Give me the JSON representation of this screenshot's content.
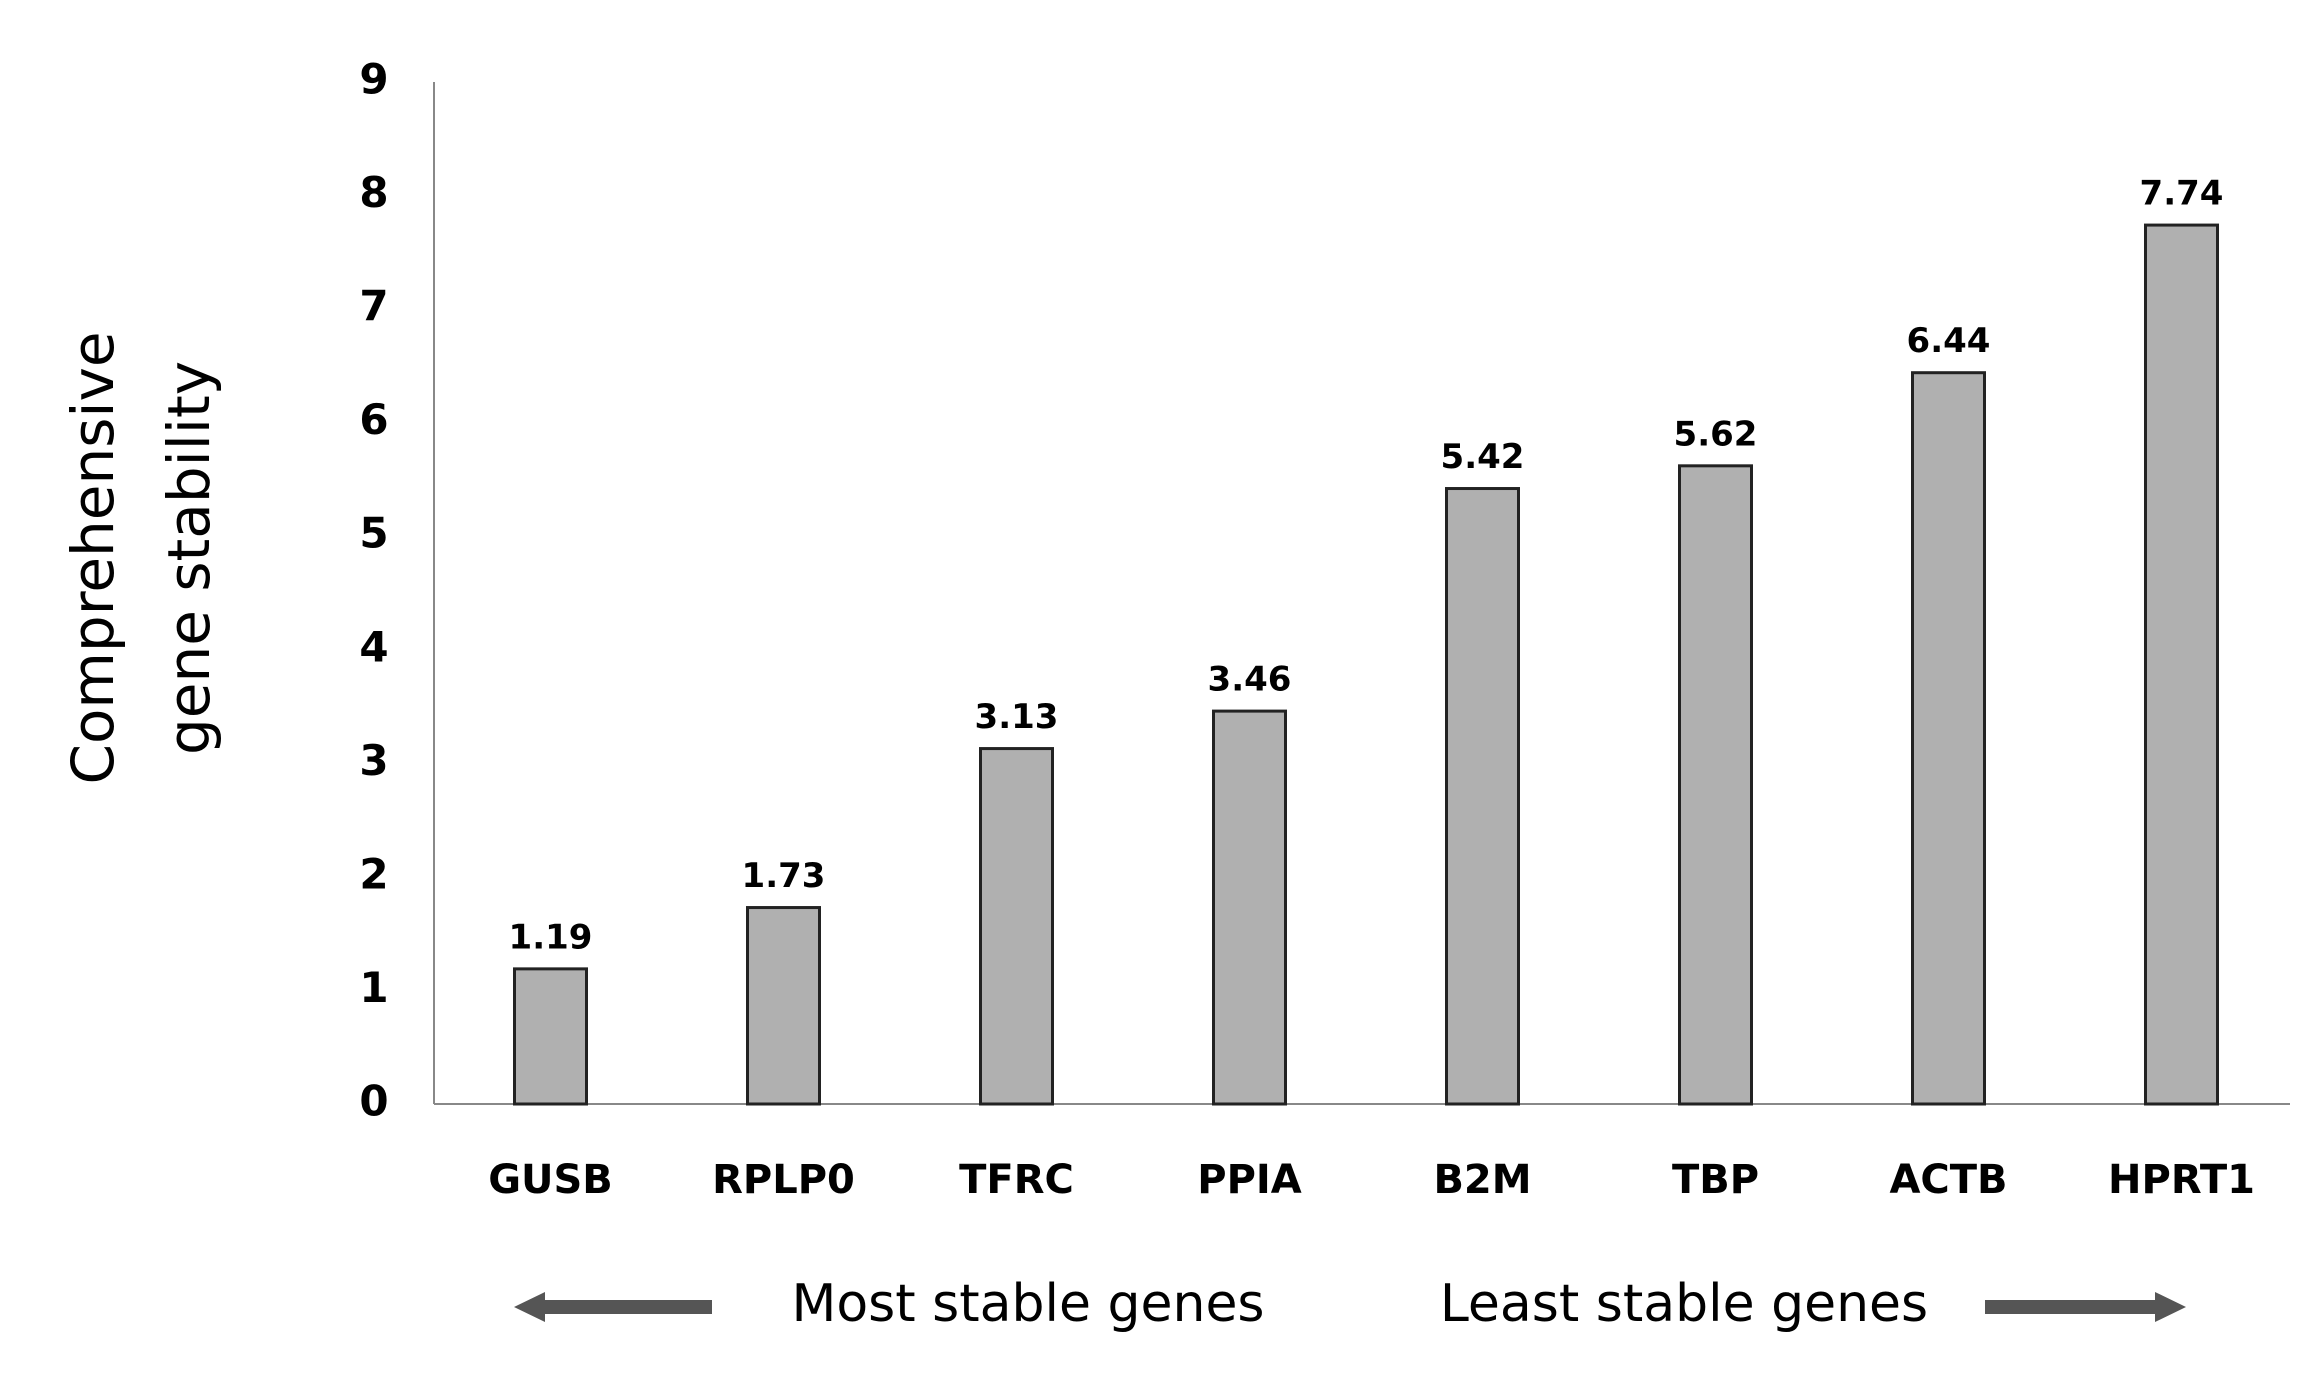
{
  "chart_data": {
    "type": "bar",
    "ylabel": [
      "Comprehensive",
      "gene stability"
    ],
    "categories": [
      "GUSB",
      "RPLP0",
      "TFRC",
      "PPIA",
      "B2M",
      "TBP",
      "ACTB",
      "HPRT1"
    ],
    "values": [
      1.19,
      1.73,
      3.13,
      3.46,
      5.42,
      5.62,
      6.44,
      7.74
    ],
    "color": "#b0b0b0",
    "ylim": [
      0,
      9
    ],
    "yticks": [
      0,
      1,
      2,
      3,
      4,
      5,
      6,
      7,
      8,
      9
    ],
    "grid": false,
    "annotations": [
      "Most stable genes",
      "Least stable genes"
    ]
  }
}
